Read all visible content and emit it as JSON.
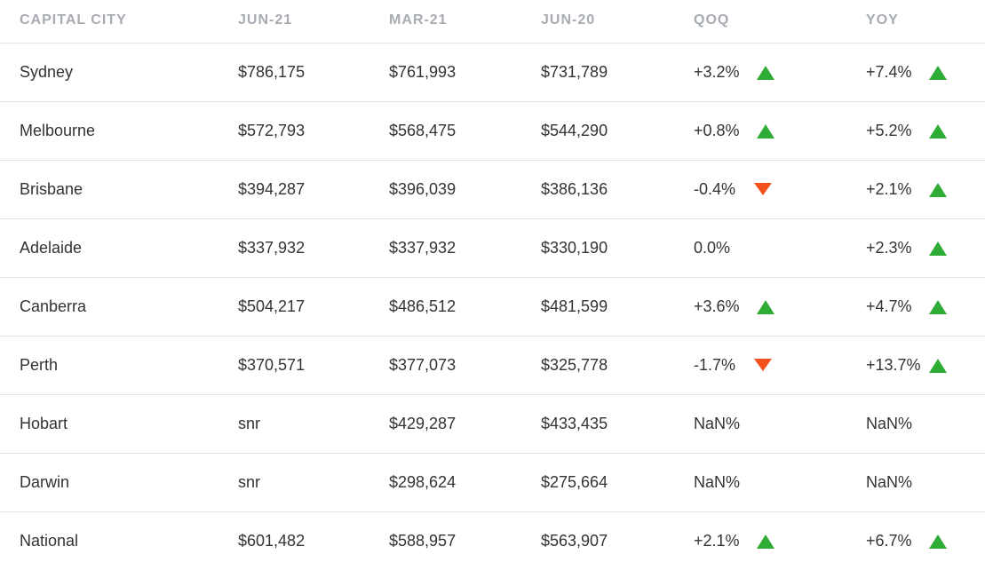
{
  "colors": {
    "up": "#2eac36",
    "down": "#f4511e",
    "header_text": "#a7abb2",
    "body_text": "#333333",
    "divider": "#e3e3e3"
  },
  "headers": [
    "CAPITAL CITY",
    "JUN-21",
    "MAR-21",
    "JUN-20",
    "QOQ",
    "YOY"
  ],
  "rows": [
    {
      "city": "Sydney",
      "jun21": "$786,175",
      "mar21": "$761,993",
      "jun20": "$731,789",
      "qoq": "+3.2%",
      "qoq_trend": "up",
      "yoy": "+7.4%",
      "yoy_trend": "up"
    },
    {
      "city": "Melbourne",
      "jun21": "$572,793",
      "mar21": "$568,475",
      "jun20": "$544,290",
      "qoq": "+0.8%",
      "qoq_trend": "up",
      "yoy": "+5.2%",
      "yoy_trend": "up"
    },
    {
      "city": "Brisbane",
      "jun21": "$394,287",
      "mar21": "$396,039",
      "jun20": "$386,136",
      "qoq": "-0.4%",
      "qoq_trend": "down",
      "yoy": "+2.1%",
      "yoy_trend": "up"
    },
    {
      "city": "Adelaide",
      "jun21": "$337,932",
      "mar21": "$337,932",
      "jun20": "$330,190",
      "qoq": "0.0%",
      "qoq_trend": "none",
      "yoy": "+2.3%",
      "yoy_trend": "up"
    },
    {
      "city": "Canberra",
      "jun21": "$504,217",
      "mar21": "$486,512",
      "jun20": "$481,599",
      "qoq": "+3.6%",
      "qoq_trend": "up",
      "yoy": "+4.7%",
      "yoy_trend": "up"
    },
    {
      "city": "Perth",
      "jun21": "$370,571",
      "mar21": "$377,073",
      "jun20": "$325,778",
      "qoq": "-1.7%",
      "qoq_trend": "down",
      "yoy": "+13.7%",
      "yoy_trend": "up"
    },
    {
      "city": "Hobart",
      "jun21": "snr",
      "mar21": "$429,287",
      "jun20": "$433,435",
      "qoq": "NaN%",
      "qoq_trend": "none",
      "yoy": "NaN%",
      "yoy_trend": "none"
    },
    {
      "city": "Darwin",
      "jun21": "snr",
      "mar21": "$298,624",
      "jun20": "$275,664",
      "qoq": "NaN%",
      "qoq_trend": "none",
      "yoy": "NaN%",
      "yoy_trend": "none"
    },
    {
      "city": "National",
      "jun21": "$601,482",
      "mar21": "$588,957",
      "jun20": "$563,907",
      "qoq": "+2.1%",
      "qoq_trend": "up",
      "yoy": "+6.7%",
      "yoy_trend": "up"
    }
  ]
}
